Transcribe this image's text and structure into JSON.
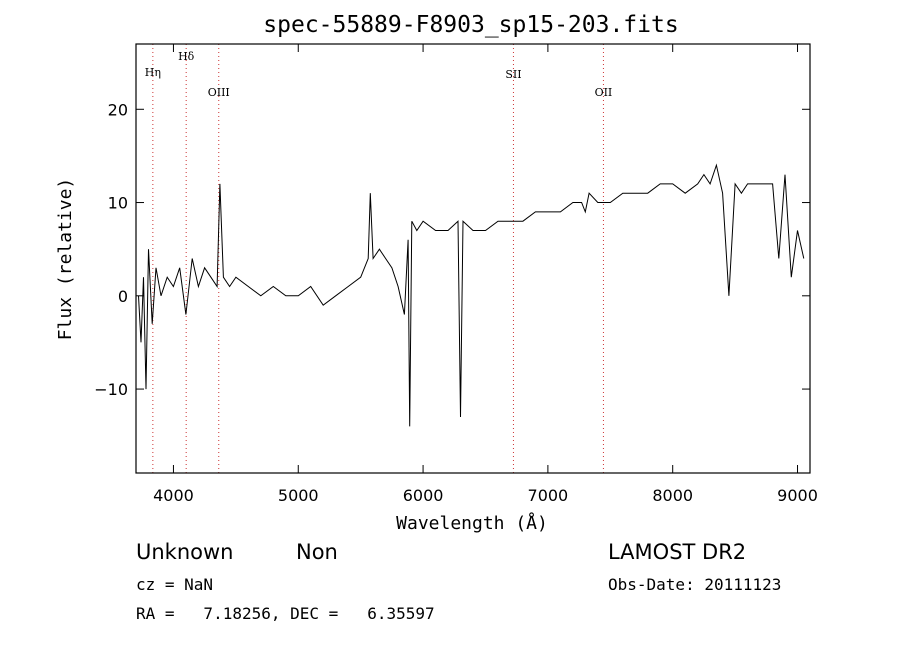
{
  "chart_data": {
    "type": "line",
    "title": "spec-55889-F8903_sp15-203.fits",
    "xlabel": "Wavelength (Å)",
    "ylabel": "Flux (relative)",
    "xlim": [
      3700,
      9100
    ],
    "ylim": [
      -19,
      27
    ],
    "xticks": [
      4000,
      5000,
      6000,
      7000,
      8000,
      9000
    ],
    "yticks": [
      -10,
      0,
      10,
      20
    ],
    "grid": false,
    "line_color": "#000000",
    "marker_line_color": "#cc3333",
    "lines": [
      {
        "name": "Hη",
        "x": 3835
      },
      {
        "name": "Hδ",
        "x": 4102
      },
      {
        "name": "OIII",
        "x": 4363
      },
      {
        "name": "SII",
        "x": 6724
      },
      {
        "name": "OII",
        "x": 7445
      }
    ],
    "series": [
      {
        "x": [
          3720,
          3740,
          3760,
          3780,
          3800,
          3830,
          3860,
          3900,
          3950,
          4000,
          4050,
          4100,
          4150,
          4200,
          4250,
          4300,
          4350,
          4372,
          4400,
          4450,
          4500,
          4600,
          4700,
          4800,
          4900,
          5000,
          5100,
          5200,
          5300,
          5400,
          5500,
          5560,
          5577,
          5600,
          5650,
          5700,
          5750,
          5800,
          5850,
          5880,
          5893,
          5910,
          5950,
          6000,
          6100,
          6200,
          6280,
          6300,
          6320,
          6400,
          6500,
          6600,
          6700,
          6800,
          6900,
          7000,
          7100,
          7200,
          7270,
          7300,
          7330,
          7400,
          7500,
          7600,
          7700,
          7800,
          7900,
          8000,
          8100,
          8200,
          8250,
          8300,
          8350,
          8400,
          8450,
          8500,
          8550,
          8600,
          8700,
          8800,
          8850,
          8900,
          8950,
          9000,
          9050
        ],
        "y": [
          0,
          -5,
          2,
          -10,
          5,
          -3,
          3,
          0,
          2,
          1,
          3,
          -2,
          4,
          1,
          3,
          2,
          1,
          12,
          2,
          1,
          2,
          1,
          0,
          1,
          0,
          0,
          1,
          -1,
          0,
          1,
          2,
          4,
          11,
          4,
          5,
          4,
          3,
          1,
          -2,
          6,
          -14,
          8,
          7,
          8,
          7,
          7,
          8,
          -13,
          8,
          7,
          7,
          8,
          8,
          8,
          9,
          9,
          9,
          10,
          10,
          9,
          11,
          10,
          10,
          11,
          11,
          11,
          12,
          12,
          11,
          12,
          13,
          12,
          14,
          11,
          0,
          12,
          11,
          12,
          12,
          12,
          4,
          13,
          2,
          7,
          4
        ]
      }
    ]
  },
  "info": {
    "object_class": "Unknown",
    "subclass": "Non",
    "survey": "LAMOST DR2",
    "cz": "cz = NaN",
    "obs_date": "Obs-Date: 20111123",
    "coords": "RA =   7.18256, DEC =   6.35597"
  }
}
